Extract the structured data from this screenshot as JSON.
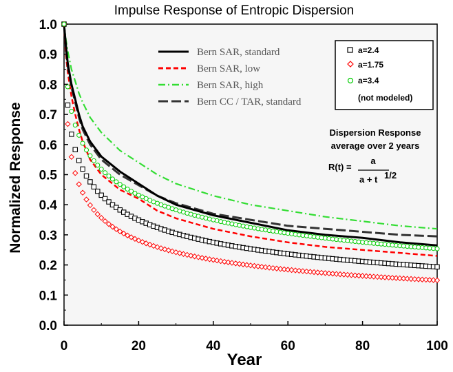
{
  "chart_data": {
    "type": "line",
    "title": "Impulse Response of Entropic Dispersion",
    "xlabel": "Year",
    "ylabel": "Normalized Response",
    "xlim": [
      0,
      100
    ],
    "ylim": [
      0,
      1.0
    ],
    "x_ticks": [
      "0",
      "20",
      "40",
      "60",
      "80",
      "100"
    ],
    "y_ticks": [
      "0.0",
      "0.1",
      "0.2",
      "0.3",
      "0.4",
      "0.5",
      "0.6",
      "0.7",
      "0.8",
      "0.9",
      "1.0"
    ],
    "line_series": [
      {
        "name": "Bern SAR, standard",
        "color": "#000000",
        "dash": "solid",
        "x": [
          0,
          0.5,
          1,
          2,
          3,
          4,
          5,
          7,
          10,
          15,
          20,
          25,
          30,
          40,
          50,
          60,
          70,
          80,
          90,
          100
        ],
        "y": [
          1.0,
          0.93,
          0.87,
          0.8,
          0.75,
          0.7,
          0.66,
          0.61,
          0.56,
          0.51,
          0.47,
          0.43,
          0.4,
          0.365,
          0.34,
          0.315,
          0.3,
          0.29,
          0.275,
          0.265
        ]
      },
      {
        "name": "Bern SAR, low",
        "color": "#ff0000",
        "dash": "dashed",
        "x": [
          0,
          0.5,
          1,
          2,
          3,
          4,
          5,
          7,
          10,
          15,
          20,
          25,
          30,
          40,
          50,
          60,
          70,
          80,
          90,
          100
        ],
        "y": [
          1.0,
          0.9,
          0.84,
          0.76,
          0.7,
          0.65,
          0.61,
          0.55,
          0.5,
          0.45,
          0.42,
          0.38,
          0.355,
          0.32,
          0.295,
          0.275,
          0.26,
          0.25,
          0.24,
          0.23
        ]
      },
      {
        "name": "Bern SAR, high",
        "color": "#33dd33",
        "dash": "dashdot",
        "x": [
          0,
          0.5,
          1,
          2,
          3,
          4,
          5,
          7,
          10,
          15,
          20,
          25,
          30,
          40,
          50,
          60,
          70,
          80,
          90,
          100
        ],
        "y": [
          1.0,
          0.95,
          0.91,
          0.85,
          0.81,
          0.77,
          0.74,
          0.69,
          0.64,
          0.58,
          0.54,
          0.5,
          0.47,
          0.43,
          0.4,
          0.38,
          0.36,
          0.345,
          0.33,
          0.32
        ]
      },
      {
        "name": "Bern CC / TAR, standard",
        "color": "#333333",
        "dash": "longdash",
        "x": [
          0,
          0.5,
          1,
          2,
          3,
          4,
          5,
          7,
          10,
          15,
          20,
          25,
          30,
          40,
          50,
          60,
          70,
          80,
          90,
          100
        ],
        "y": [
          1.0,
          0.92,
          0.86,
          0.79,
          0.74,
          0.69,
          0.65,
          0.6,
          0.55,
          0.5,
          0.465,
          0.43,
          0.405,
          0.37,
          0.35,
          0.33,
          0.32,
          0.31,
          0.3,
          0.295
        ]
      }
    ],
    "marker_series": [
      {
        "name": "a=2.4",
        "a": 2.4,
        "marker": "square",
        "color": "#000000"
      },
      {
        "name": "a=1.75",
        "a": 1.75,
        "marker": "diamond",
        "color": "#ff0000"
      },
      {
        "name": "a=3.4",
        "a": 3.4,
        "marker": "circle",
        "color": "#00cc00"
      }
    ],
    "marker_note": "(not modeled)",
    "annotation": {
      "line1": "Dispersion Response",
      "line2": "average over 2 years",
      "lhs": "R(t) =",
      "numerator": "a",
      "denominator": "a + t",
      "exponent": "1/2"
    },
    "legend_position": "top-right",
    "grid": false
  }
}
